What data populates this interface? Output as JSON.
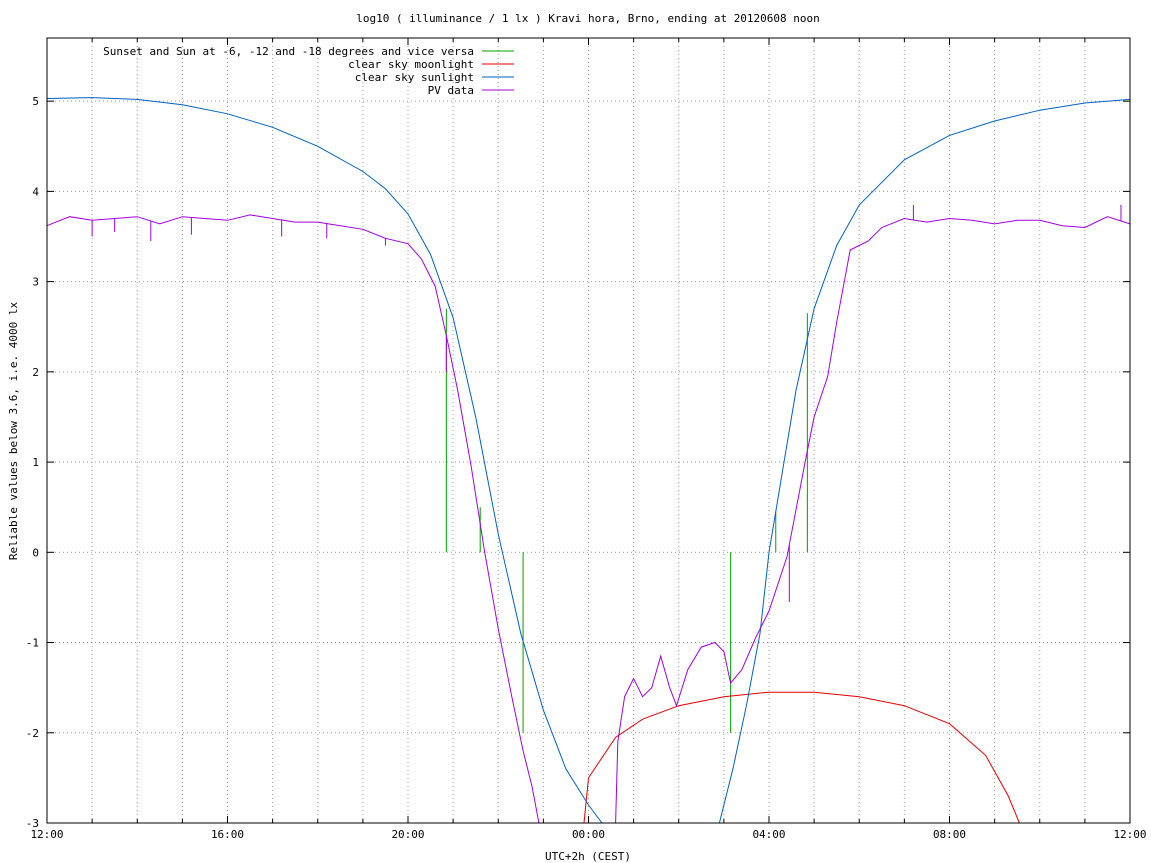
{
  "chart_data": {
    "type": "line",
    "title": "log10 ( illuminance / 1 lx ) Kravi hora, Brno, ending at 20120608 noon",
    "xlabel": "UTC+2h (CEST)",
    "ylabel": "Reliable values below 3.6, i.e. 4000 lx",
    "xlim": [
      12,
      36
    ],
    "ylim": [
      -3,
      5.7
    ],
    "x_ticks": [
      {
        "value": 12,
        "label": "12:00"
      },
      {
        "value": 16,
        "label": "16:00"
      },
      {
        "value": 20,
        "label": "20:00"
      },
      {
        "value": 24,
        "label": "00:00"
      },
      {
        "value": 28,
        "label": "04:00"
      },
      {
        "value": 32,
        "label": "08:00"
      },
      {
        "value": 36,
        "label": "12:00"
      }
    ],
    "y_ticks": [
      {
        "value": -3,
        "label": "-3"
      },
      {
        "value": -2,
        "label": "-2"
      },
      {
        "value": -1,
        "label": "-1"
      },
      {
        "value": 0,
        "label": "0"
      },
      {
        "value": 1,
        "label": "1"
      },
      {
        "value": 2,
        "label": "2"
      },
      {
        "value": 3,
        "label": "3"
      },
      {
        "value": 4,
        "label": "4"
      },
      {
        "value": 5,
        "label": "5"
      }
    ],
    "grid": true,
    "legend_position": "top-left",
    "series": [
      {
        "name": "Sunset and Sun at -6, -12 and -18 degrees and vice versa",
        "color": "#00a000",
        "style": "impulses",
        "segments": [
          {
            "x": 20.85,
            "y0": 0,
            "y1": 2.7
          },
          {
            "x": 21.6,
            "y0": 0,
            "y1": 0.5
          },
          {
            "x": 22.55,
            "y0": -2.0,
            "y1": 0
          },
          {
            "x": 27.15,
            "y0": -2.0,
            "y1": 0
          },
          {
            "x": 28.15,
            "y0": 0,
            "y1": 0.45
          },
          {
            "x": 28.85,
            "y0": 0,
            "y1": 2.65
          }
        ]
      },
      {
        "name": "clear sky moonlight",
        "color": "#e00000",
        "points": [
          [
            23.9,
            -3.0
          ],
          [
            24.0,
            -2.5
          ],
          [
            24.6,
            -2.05
          ],
          [
            25.2,
            -1.85
          ],
          [
            26.0,
            -1.7
          ],
          [
            27.0,
            -1.6
          ],
          [
            28.0,
            -1.55
          ],
          [
            29.0,
            -1.55
          ],
          [
            30.0,
            -1.6
          ],
          [
            31.0,
            -1.7
          ],
          [
            32.0,
            -1.9
          ],
          [
            32.8,
            -2.25
          ],
          [
            33.3,
            -2.7
          ],
          [
            33.55,
            -3.0
          ]
        ]
      },
      {
        "name": "clear sky sunlight",
        "color": "#0060c0",
        "points": [
          [
            12.0,
            5.03
          ],
          [
            13.0,
            5.04
          ],
          [
            14.0,
            5.02
          ],
          [
            15.0,
            4.96
          ],
          [
            16.0,
            4.86
          ],
          [
            17.0,
            4.71
          ],
          [
            18.0,
            4.5
          ],
          [
            19.0,
            4.22
          ],
          [
            19.5,
            4.03
          ],
          [
            20.0,
            3.75
          ],
          [
            20.5,
            3.3
          ],
          [
            21.0,
            2.6
          ],
          [
            21.5,
            1.5
          ],
          [
            22.0,
            0.2
          ],
          [
            22.5,
            -0.9
          ],
          [
            23.0,
            -1.75
          ],
          [
            23.5,
            -2.4
          ],
          [
            24.0,
            -2.8
          ],
          [
            24.3,
            -3.0
          ],
          [
            26.9,
            -3.0
          ],
          [
            27.2,
            -2.4
          ],
          [
            27.5,
            -1.7
          ],
          [
            27.8,
            -0.9
          ],
          [
            28.0,
            0.0
          ],
          [
            28.3,
            0.9
          ],
          [
            28.6,
            1.8
          ],
          [
            29.0,
            2.7
          ],
          [
            29.5,
            3.4
          ],
          [
            30.0,
            3.85
          ],
          [
            31.0,
            4.35
          ],
          [
            32.0,
            4.62
          ],
          [
            33.0,
            4.78
          ],
          [
            34.0,
            4.9
          ],
          [
            35.0,
            4.98
          ],
          [
            36.0,
            5.02
          ]
        ]
      },
      {
        "name": "PV data",
        "color": "#a000e0",
        "points": [
          [
            12.0,
            3.62
          ],
          [
            12.5,
            3.72
          ],
          [
            13.0,
            3.68
          ],
          [
            13.5,
            3.7
          ],
          [
            14.0,
            3.72
          ],
          [
            14.5,
            3.64
          ],
          [
            15.0,
            3.72
          ],
          [
            15.5,
            3.7
          ],
          [
            16.0,
            3.68
          ],
          [
            16.5,
            3.74
          ],
          [
            17.0,
            3.7
          ],
          [
            17.5,
            3.66
          ],
          [
            18.0,
            3.66
          ],
          [
            18.5,
            3.62
          ],
          [
            19.0,
            3.58
          ],
          [
            19.5,
            3.48
          ],
          [
            20.0,
            3.42
          ],
          [
            20.3,
            3.25
          ],
          [
            20.6,
            2.95
          ],
          [
            20.85,
            2.4
          ],
          [
            21.1,
            1.8
          ],
          [
            21.4,
            0.95
          ],
          [
            21.7,
            0.0
          ],
          [
            22.0,
            -0.85
          ],
          [
            22.3,
            -1.6
          ],
          [
            22.55,
            -2.2
          ],
          [
            22.75,
            -2.6
          ],
          [
            22.9,
            -3.0
          ],
          [
            24.6,
            -3.0
          ],
          [
            24.65,
            -2.1
          ],
          [
            24.8,
            -1.6
          ],
          [
            25.0,
            -1.4
          ],
          [
            25.2,
            -1.6
          ],
          [
            25.4,
            -1.5
          ],
          [
            25.6,
            -1.15
          ],
          [
            25.8,
            -1.5
          ],
          [
            25.95,
            -1.7
          ],
          [
            26.2,
            -1.3
          ],
          [
            26.5,
            -1.05
          ],
          [
            26.8,
            -1.0
          ],
          [
            27.0,
            -1.1
          ],
          [
            27.15,
            -1.45
          ],
          [
            27.4,
            -1.3
          ],
          [
            27.7,
            -0.95
          ],
          [
            28.0,
            -0.65
          ],
          [
            28.4,
            -0.05
          ],
          [
            28.8,
            1.0
          ],
          [
            29.0,
            1.5
          ],
          [
            29.3,
            1.95
          ],
          [
            29.5,
            2.55
          ],
          [
            29.8,
            3.35
          ],
          [
            30.2,
            3.45
          ],
          [
            30.5,
            3.6
          ],
          [
            31.0,
            3.7
          ],
          [
            31.5,
            3.66
          ],
          [
            32.0,
            3.7
          ],
          [
            32.5,
            3.68
          ],
          [
            33.0,
            3.64
          ],
          [
            33.5,
            3.68
          ],
          [
            34.0,
            3.68
          ],
          [
            34.5,
            3.62
          ],
          [
            35.0,
            3.6
          ],
          [
            35.5,
            3.72
          ],
          [
            36.0,
            3.64
          ]
        ],
        "spikes": [
          [
            13.0,
            3.5
          ],
          [
            13.5,
            3.55
          ],
          [
            14.3,
            3.45
          ],
          [
            15.2,
            3.52
          ],
          [
            17.2,
            3.5
          ],
          [
            18.2,
            3.48
          ],
          [
            19.5,
            3.4
          ],
          [
            20.85,
            2.0
          ],
          [
            28.45,
            -0.55
          ],
          [
            31.2,
            3.85
          ],
          [
            35.8,
            3.85
          ]
        ]
      }
    ]
  }
}
